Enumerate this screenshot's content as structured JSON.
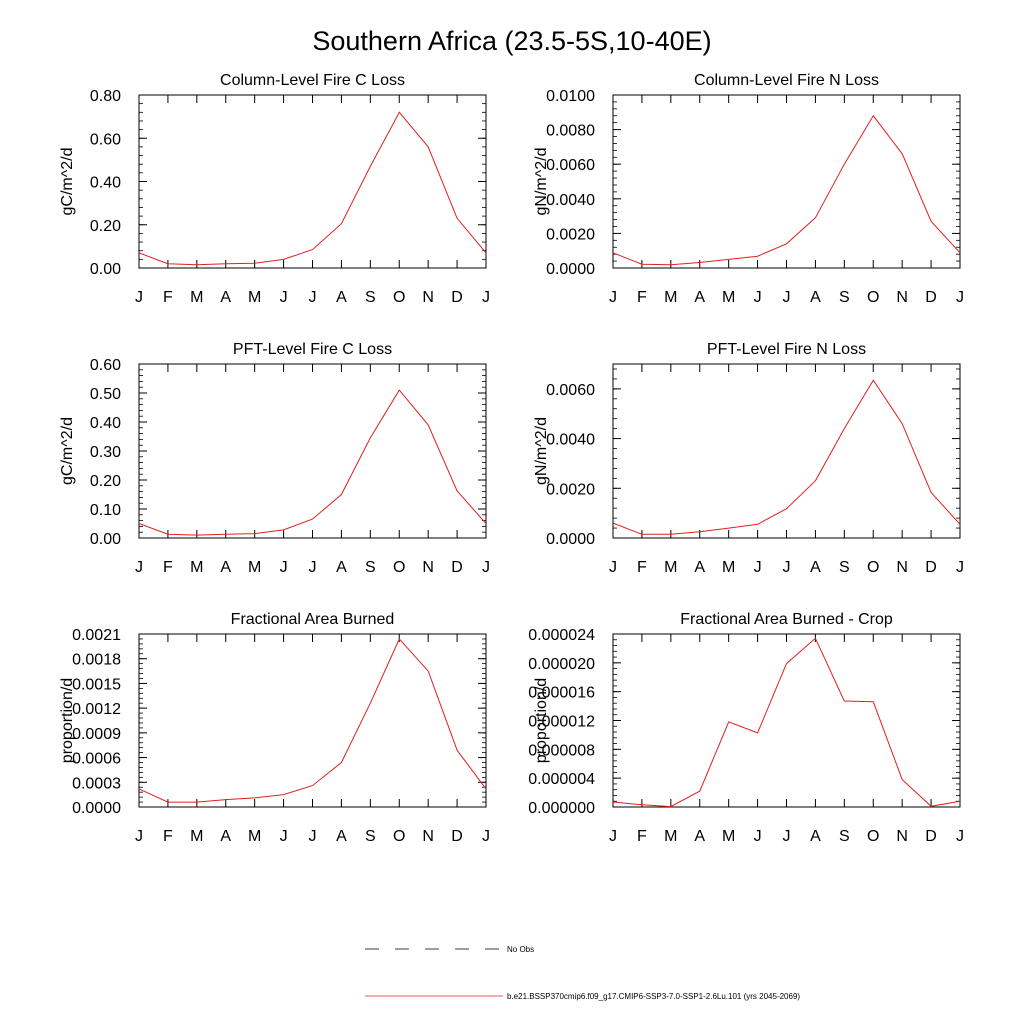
{
  "figure": {
    "title": "Southern Africa (23.5-5S,10-40E)"
  },
  "legend": {
    "obs_label": "No Obs",
    "model_label": "b.e21.BSSP370cmip6.f09_g17.CMIP6-SSP3-7.0-SSP1-2.6Lu.101 (yrs 2045-2069)",
    "obs_color": "#000000",
    "model_color": "#e02020"
  },
  "chart_data": [
    {
      "type": "line",
      "title": "Column-Level Fire C Loss",
      "ylabel": "gC/m^2/d",
      "categories": [
        "J",
        "F",
        "M",
        "A",
        "M",
        "J",
        "J",
        "A",
        "S",
        "O",
        "N",
        "D",
        "J"
      ],
      "ylim": [
        0,
        0.8
      ],
      "yticks": [
        "0.00",
        "0.20",
        "0.40",
        "0.60",
        "0.80"
      ],
      "series": [
        {
          "values": [
            0.07,
            0.02,
            0.015,
            0.02,
            0.022,
            0.04,
            0.085,
            0.205,
            0.47,
            0.72,
            0.56,
            0.23,
            0.07
          ]
        }
      ]
    },
    {
      "type": "line",
      "title": "Column-Level Fire N Loss",
      "ylabel": "gN/m^2/d",
      "categories": [
        "J",
        "F",
        "M",
        "A",
        "M",
        "J",
        "J",
        "A",
        "S",
        "O",
        "N",
        "D",
        "J"
      ],
      "ylim": [
        0,
        0.01
      ],
      "yticks": [
        "0.0000",
        "0.0020",
        "0.0040",
        "0.0060",
        "0.0080",
        "0.0100"
      ],
      "series": [
        {
          "values": [
            0.00088,
            0.00022,
            0.00019,
            0.00032,
            0.0005,
            0.00068,
            0.0014,
            0.0029,
            0.006,
            0.0088,
            0.0066,
            0.0027,
            0.00088
          ]
        }
      ]
    },
    {
      "type": "line",
      "title": "PFT-Level Fire C Loss",
      "ylabel": "gC/m^2/d",
      "categories": [
        "J",
        "F",
        "M",
        "A",
        "M",
        "J",
        "J",
        "A",
        "S",
        "O",
        "N",
        "D",
        "J"
      ],
      "ylim": [
        0,
        0.6
      ],
      "yticks": [
        "0.00",
        "0.10",
        "0.20",
        "0.30",
        "0.40",
        "0.50",
        "0.60"
      ],
      "series": [
        {
          "values": [
            0.05,
            0.013,
            0.01,
            0.013,
            0.015,
            0.028,
            0.065,
            0.15,
            0.345,
            0.51,
            0.39,
            0.162,
            0.05
          ]
        }
      ]
    },
    {
      "type": "line",
      "title": "PFT-Level Fire N Loss",
      "ylabel": "gN/m^2/d",
      "categories": [
        "J",
        "F",
        "M",
        "A",
        "M",
        "J",
        "J",
        "A",
        "S",
        "O",
        "N",
        "D",
        "J"
      ],
      "ylim": [
        0,
        0.007
      ],
      "yticks": [
        "0.0000",
        "0.0020",
        "0.0040",
        "0.0060"
      ],
      "ytick_values": [
        0,
        0.002,
        0.004,
        0.006
      ],
      "series": [
        {
          "values": [
            0.0006,
            0.00015,
            0.00015,
            0.00025,
            0.0004,
            0.00055,
            0.00118,
            0.0023,
            0.0044,
            0.00635,
            0.0046,
            0.00183,
            0.00055
          ]
        }
      ]
    },
    {
      "type": "line",
      "title": "Fractional Area Burned",
      "ylabel": "proportion/d",
      "categories": [
        "J",
        "F",
        "M",
        "A",
        "M",
        "J",
        "J",
        "A",
        "S",
        "O",
        "N",
        "D",
        "J"
      ],
      "ylim": [
        0,
        0.0021
      ],
      "yticks": [
        "0.0000",
        "0.0003",
        "0.0006",
        "0.0009",
        "0.0012",
        "0.0015",
        "0.0018",
        "0.0021"
      ],
      "series": [
        {
          "values": [
            0.00022,
            6e-05,
            6e-05,
            9e-05,
            0.00011,
            0.00015,
            0.00026,
            0.00054,
            0.00126,
            0.00204,
            0.00165,
            0.00069,
            0.00022
          ]
        }
      ]
    },
    {
      "type": "line",
      "title": "Fractional Area Burned - Crop",
      "ylabel": "proportion/d",
      "categories": [
        "J",
        "F",
        "M",
        "A",
        "M",
        "J",
        "J",
        "A",
        "S",
        "O",
        "N",
        "D",
        "J"
      ],
      "ylim": [
        0,
        2.4e-05
      ],
      "yticks": [
        "0.000000",
        "0.000004",
        "0.000008",
        "0.000012",
        "0.000016",
        "0.000020",
        "0.000024"
      ],
      "series": [
        {
          "values": [
            7e-07,
            3e-07,
            5e-08,
            2.2e-06,
            1.18e-05,
            1.03e-05,
            1.99e-05,
            2.34e-05,
            1.47e-05,
            1.46e-05,
            3.8e-06,
            1e-07,
            8e-07
          ]
        }
      ]
    }
  ]
}
